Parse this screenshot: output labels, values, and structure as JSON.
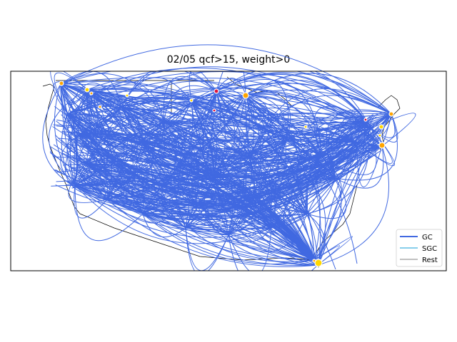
{
  "chart_data": {
    "type": "network-map",
    "title": "02/05 qcf>15, weight>0",
    "legend_position": "lower-right",
    "series": [
      {
        "name": "GC",
        "color": "#4169e1"
      },
      {
        "name": "SGC",
        "color": "#87ceeb"
      },
      {
        "name": "Rest",
        "color": "#c0c0c0"
      }
    ],
    "line_color": "#4169e1",
    "node_colors": [
      "#ffa500",
      "#ffd700",
      "#dc143c"
    ],
    "grid": false
  }
}
